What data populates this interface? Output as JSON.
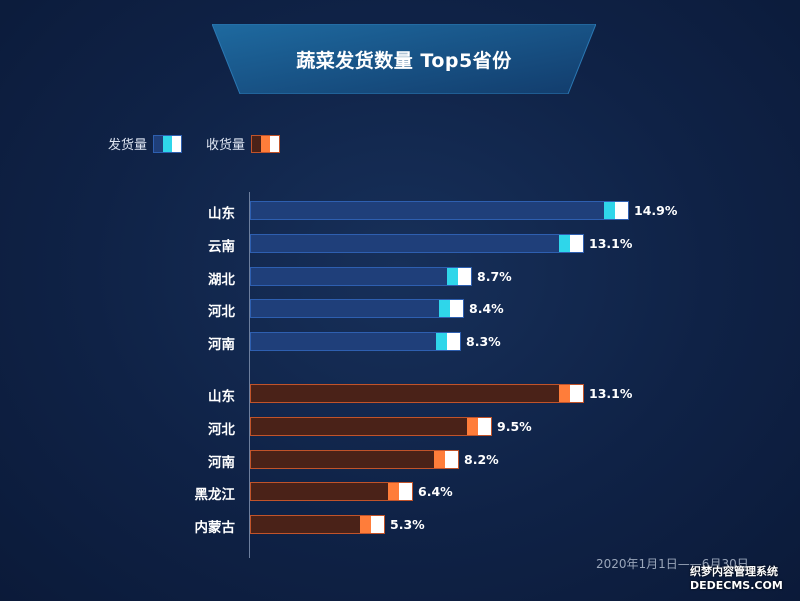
{
  "title": "蔬菜发货数量 Top5省份",
  "legend": {
    "ship_label": "发货量",
    "recv_label": "收货量"
  },
  "colors": {
    "ship_bar": "#1f3f7a",
    "ship_cap": "#2fd6ea",
    "recv_bar": "#4a2218",
    "recv_cap": "#ff7d3a"
  },
  "chart_data": {
    "type": "bar",
    "orientation": "horizontal",
    "series": [
      {
        "name": "发货量",
        "categories": [
          "山东",
          "云南",
          "湖北",
          "河北",
          "河南"
        ],
        "values": [
          14.9,
          13.1,
          8.7,
          8.4,
          8.3
        ],
        "labels": [
          "14.9%",
          "13.1%",
          "8.7%",
          "8.4%",
          "8.3%"
        ]
      },
      {
        "name": "收货量",
        "categories": [
          "山东",
          "河北",
          "河南",
          "黑龙江",
          "内蒙古"
        ],
        "values": [
          13.1,
          9.5,
          8.2,
          6.4,
          5.3
        ],
        "labels": [
          "13.1%",
          "9.5%",
          "8.2%",
          "6.4%",
          "5.3%"
        ]
      }
    ]
  },
  "date_range": "2020年1月1日——6月30日",
  "watermark": {
    "line1": "织梦内容管理系统",
    "line2": "DEDECMS.COM"
  }
}
